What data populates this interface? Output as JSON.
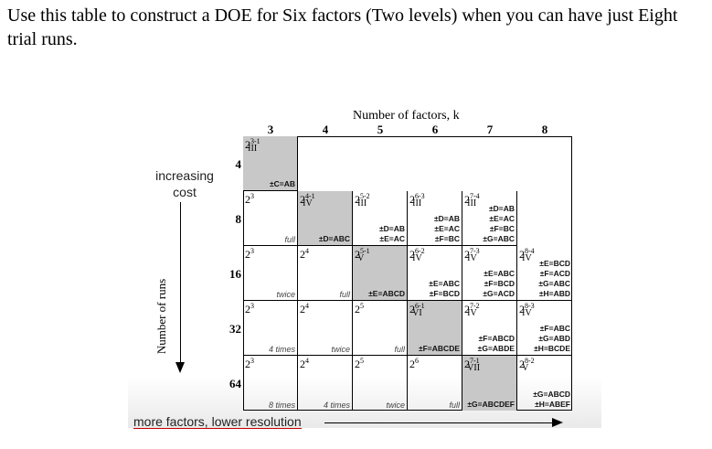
{
  "question": "Use this table to construct a DOE for Six factors (Two levels) when you can have just Eight trial runs.",
  "figure": {
    "header": "Number of factors, k",
    "columns": [
      "3",
      "4",
      "5",
      "6",
      "7",
      "8"
    ],
    "rows": [
      "4",
      "8",
      "16",
      "32",
      "64"
    ],
    "side_label": "increasing cost",
    "runs_label": "Number of runs",
    "bottom_label": "more factors, lower resolution",
    "cells": [
      {
        "r": 0,
        "c": 0,
        "gray": true,
        "base": "2",
        "sup": "3-1",
        "sub": "III",
        "note": "",
        "gens": [
          "±C=AB"
        ],
        "gens_inrow": true
      },
      {
        "r": 1,
        "c": 0,
        "gray": false,
        "base": "2",
        "sup": "3",
        "sub": "",
        "note": "full",
        "gens": []
      },
      {
        "r": 1,
        "c": 1,
        "gray": true,
        "base": "2",
        "sup": "4-1",
        "sub": "IV",
        "note": "",
        "gens": [
          "±D=ABC"
        ]
      },
      {
        "r": 1,
        "c": 2,
        "gray": false,
        "base": "2",
        "sup": "5-2",
        "sub": "III",
        "note": "",
        "gens": [
          "±D=AB",
          "±E=AC"
        ]
      },
      {
        "r": 1,
        "c": 3,
        "gray": false,
        "base": "2",
        "sup": "6-3",
        "sub": "III",
        "note": "",
        "gens": [
          "±D=AB",
          "±E=AC",
          "±F=BC"
        ]
      },
      {
        "r": 1,
        "c": 4,
        "gray": false,
        "base": "2",
        "sup": "7-4",
        "sub": "III",
        "note": "",
        "gens": [
          "±D=AB",
          "±E=AC",
          "±F=BC",
          "±G=ABC"
        ],
        "gens_inrow": true
      },
      {
        "r": 2,
        "c": 0,
        "gray": false,
        "base": "2",
        "sup": "3",
        "sub": "",
        "note": "twice",
        "gens": []
      },
      {
        "r": 2,
        "c": 1,
        "gray": false,
        "base": "2",
        "sup": "4",
        "sub": "",
        "note": "full",
        "gens": []
      },
      {
        "r": 2,
        "c": 2,
        "gray": true,
        "base": "2",
        "sup": "5-1",
        "sub": "V",
        "note": "",
        "gens": [
          "±E=ABCD"
        ]
      },
      {
        "r": 2,
        "c": 3,
        "gray": false,
        "base": "2",
        "sup": "6-2",
        "sub": "IV",
        "note": "",
        "gens": [
          "±E=ABC",
          "±F=BCD"
        ]
      },
      {
        "r": 2,
        "c": 4,
        "gray": false,
        "base": "2",
        "sup": "7-3",
        "sub": "IV",
        "note": "",
        "gens": [
          "±E=ABC",
          "±F=BCD",
          "±G=ACD"
        ]
      },
      {
        "r": 2,
        "c": 5,
        "gray": false,
        "base": "2",
        "sup": "8-4",
        "sub": "IV",
        "note": "",
        "gens": [
          "±E=BCD",
          "±F=ACD",
          "±G=ABC",
          "±H=ABD"
        ],
        "gens_inrow": true
      },
      {
        "r": 3,
        "c": 0,
        "gray": false,
        "base": "2",
        "sup": "3",
        "sub": "",
        "note": "4 times",
        "gens": []
      },
      {
        "r": 3,
        "c": 1,
        "gray": false,
        "base": "2",
        "sup": "4",
        "sub": "",
        "note": "twice",
        "gens": []
      },
      {
        "r": 3,
        "c": 2,
        "gray": false,
        "base": "2",
        "sup": "5",
        "sub": "",
        "note": "full",
        "gens": []
      },
      {
        "r": 3,
        "c": 3,
        "gray": true,
        "base": "2",
        "sup": "6-1",
        "sub": "VI",
        "note": "",
        "gens": [
          "±F=ABCDE"
        ]
      },
      {
        "r": 3,
        "c": 4,
        "gray": false,
        "base": "2",
        "sup": "7-2",
        "sub": "IV",
        "note": "",
        "gens": [
          "±F=ABCD",
          "±G=ABDE"
        ]
      },
      {
        "r": 3,
        "c": 5,
        "gray": false,
        "base": "2",
        "sup": "8-3",
        "sub": "IV",
        "note": "",
        "gens": [
          "±F=ABC",
          "±G=ABD",
          "±H=BCDE"
        ]
      },
      {
        "r": 4,
        "c": 0,
        "gray": false,
        "base": "2",
        "sup": "3",
        "sub": "",
        "note": "8 times",
        "gens": []
      },
      {
        "r": 4,
        "c": 1,
        "gray": false,
        "base": "2",
        "sup": "4",
        "sub": "",
        "note": "4 times",
        "gens": []
      },
      {
        "r": 4,
        "c": 2,
        "gray": false,
        "base": "2",
        "sup": "5",
        "sub": "",
        "note": "twice",
        "gens": []
      },
      {
        "r": 4,
        "c": 3,
        "gray": false,
        "base": "2",
        "sup": "6",
        "sub": "",
        "note": "full",
        "gens": []
      },
      {
        "r": 4,
        "c": 4,
        "gray": true,
        "base": "2",
        "sup": "7-1",
        "sub": "VII",
        "note": "",
        "gens": [
          "±G=ABCDEF"
        ]
      },
      {
        "r": 4,
        "c": 5,
        "gray": false,
        "base": "2",
        "sup": "8-2",
        "sub": "V",
        "note": "",
        "gens": [
          "±G=ABCD",
          "±H=ABEF"
        ]
      }
    ]
  }
}
